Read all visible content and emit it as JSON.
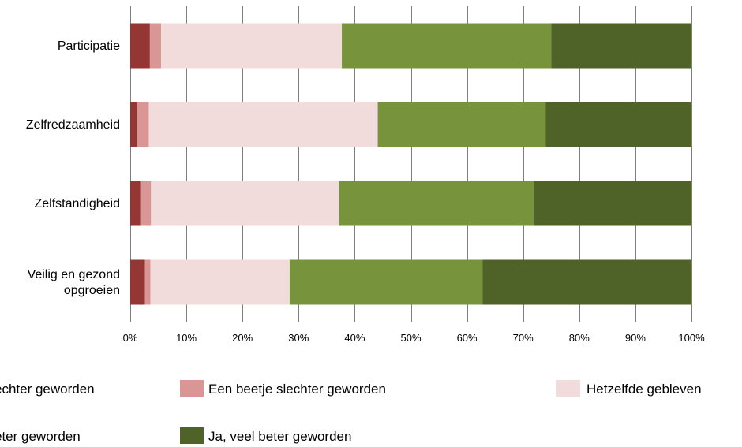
{
  "chart_data": {
    "type": "bar",
    "orientation": "horizontal",
    "stacked": "percent",
    "categories": [
      "Participatie",
      "Zelfredzaamheid",
      "Zelfstandigheid",
      "Veilig en gezond opgroeien"
    ],
    "category_label_lines": [
      [
        "Participatie"
      ],
      [
        "Zelfredzaamheid"
      ],
      [
        "Zelfstandigheid"
      ],
      [
        "Veilig en gezond",
        "opgroeien"
      ]
    ],
    "series": [
      {
        "name": "Veel slechter geworden",
        "legend_label": "echter geworden",
        "color": "#943634",
        "values": [
          3.5,
          1.2,
          1.8,
          2.6
        ]
      },
      {
        "name": "Een beetje slechter geworden",
        "legend_label": "Een beetje slechter geworden",
        "color": "#d99694",
        "values": [
          2.0,
          2.1,
          1.9,
          1.0
        ]
      },
      {
        "name": "Hetzelfde gebleven",
        "legend_label": "Hetzelfde gebleven",
        "color": "#f2dcdb",
        "values": [
          32.2,
          40.8,
          33.5,
          24.8
        ]
      },
      {
        "name": "Ja, iets beter geworden",
        "legend_label": "eter geworden",
        "color": "#77933c",
        "values": [
          37.3,
          29.9,
          34.7,
          34.4
        ]
      },
      {
        "name": "Ja, veel beter geworden",
        "legend_label": "Ja, veel beter geworden",
        "color": "#4f6228",
        "values": [
          25.0,
          26.0,
          28.1,
          37.2
        ]
      }
    ],
    "xlim": [
      0,
      100
    ],
    "x_ticks": [
      "0%",
      "10%",
      "20%",
      "30%",
      "40%",
      "50%",
      "60%",
      "70%",
      "80%",
      "90%",
      "100%"
    ],
    "grid": "vertical",
    "legend_position": "bottom"
  }
}
